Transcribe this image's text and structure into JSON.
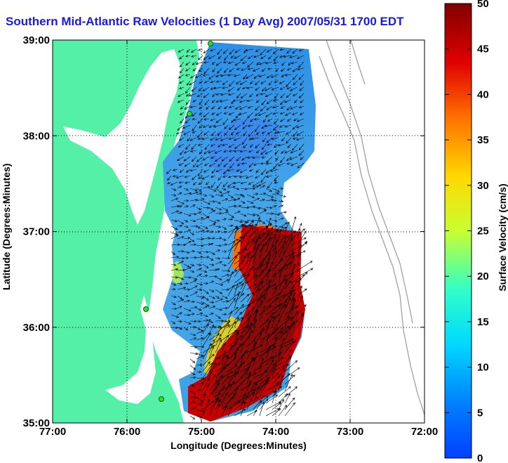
{
  "chart_data": {
    "type": "heatmap",
    "title": "Southern Mid-Atlantic Raw Velocities (1 Day Avg) 2007/05/31 1700 EDT",
    "xlabel": "Longitude (Degrees:Minutes)",
    "ylabel": "Latitude (Degrees:Minutes)",
    "colorbar_label": "Surface Velocity (cm/s)",
    "x_ticks": [
      {
        "value": -77,
        "label": "77:00"
      },
      {
        "value": -76,
        "label": "76:00"
      },
      {
        "value": -75,
        "label": "75:00"
      },
      {
        "value": -74,
        "label": "74:00"
      },
      {
        "value": -73,
        "label": "73:00"
      },
      {
        "value": -72,
        "label": "72:00"
      }
    ],
    "y_ticks": [
      {
        "value": 35,
        "label": "35:00"
      },
      {
        "value": 36,
        "label": "36:00"
      },
      {
        "value": 37,
        "label": "37:00"
      },
      {
        "value": 38,
        "label": "38:00"
      },
      {
        "value": 39,
        "label": "39:00"
      }
    ],
    "xlim": [
      -77,
      -72
    ],
    "ylim": [
      35,
      39
    ],
    "colorbar_range": [
      0,
      50
    ],
    "colorbar_ticks": [
      0,
      5,
      10,
      15,
      20,
      25,
      30,
      35,
      40,
      45,
      50
    ],
    "grid": "dotted",
    "colors": {
      "title": "#1a1adc",
      "land": "#55f0a8",
      "contours": "#a0a0a0"
    }
  }
}
